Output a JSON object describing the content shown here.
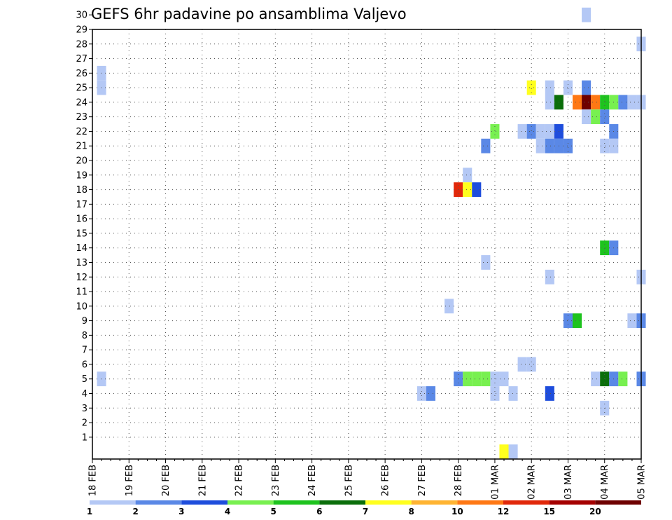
{
  "chart_data": {
    "type": "heatmap",
    "title": "GEFS 6hr padavine po ansamblima Valjevo",
    "xlabel": "",
    "ylabel": "",
    "x_tick_labels": [
      "18 FEB",
      "19 FEB",
      "20 FEB",
      "21 FEB",
      "22 FEB",
      "23 FEB",
      "24 FEB",
      "25 FEB",
      "26 FEB",
      "27 FEB",
      "28 FEB",
      "01 MAR",
      "02 MAR",
      "03 MAR",
      "04 MAR",
      "05 MAR"
    ],
    "y_tick_labels": [
      "1",
      "2",
      "3",
      "4",
      "5",
      "6",
      "7",
      "8",
      "9",
      "10",
      "11",
      "12",
      "13",
      "14",
      "15",
      "16",
      "17",
      "18",
      "19",
      "20",
      "21",
      "22",
      "23",
      "24",
      "25",
      "26",
      "27",
      "28",
      "29",
      "30"
    ],
    "y_range": [
      0,
      30
    ],
    "x_range_days": [
      0,
      15
    ],
    "time_step_hours": 6,
    "grid": "dotted",
    "levels": [
      "1",
      "2",
      "3",
      "4",
      "5",
      "6",
      "7",
      "8",
      "10",
      "12",
      "15",
      "20"
    ],
    "colors": [
      "#b4c8f5",
      "#5a88e6",
      "#1e4ddc",
      "#78f050",
      "#1ec31e",
      "#0a6e0a",
      "#ffff1e",
      "#ffb432",
      "#ff7814",
      "#e1280a",
      "#a50000",
      "#6e0000"
    ],
    "cells": [
      {
        "member": 26,
        "step": 1,
        "class": 1
      },
      {
        "member": 25,
        "step": 1,
        "class": 1
      },
      {
        "member": 5,
        "step": 1,
        "class": 1
      },
      {
        "member": 30,
        "step": 54,
        "class": 1
      },
      {
        "member": 28,
        "step": 60,
        "class": 1
      },
      {
        "member": 25,
        "step": 48,
        "class": 7
      },
      {
        "member": 25,
        "step": 50,
        "class": 1
      },
      {
        "member": 25,
        "step": 52,
        "class": 1
      },
      {
        "member": 25,
        "step": 54,
        "class": 2
      },
      {
        "member": 24,
        "step": 50,
        "class": 1
      },
      {
        "member": 24,
        "step": 51,
        "class": 6
      },
      {
        "member": 24,
        "step": 53,
        "class": 9
      },
      {
        "member": 24,
        "step": 54,
        "class": 12
      },
      {
        "member": 24,
        "step": 55,
        "class": 9
      },
      {
        "member": 24,
        "step": 56,
        "class": 5
      },
      {
        "member": 24,
        "step": 57,
        "class": 4
      },
      {
        "member": 24,
        "step": 58,
        "class": 2
      },
      {
        "member": 24,
        "step": 59,
        "class": 1
      },
      {
        "member": 24,
        "step": 60,
        "class": 1
      },
      {
        "member": 23,
        "step": 54,
        "class": 1
      },
      {
        "member": 23,
        "step": 55,
        "class": 4
      },
      {
        "member": 23,
        "step": 56,
        "class": 2
      },
      {
        "member": 22,
        "step": 44,
        "class": 4
      },
      {
        "member": 22,
        "step": 47,
        "class": 1
      },
      {
        "member": 22,
        "step": 48,
        "class": 2
      },
      {
        "member": 22,
        "step": 49,
        "class": 1
      },
      {
        "member": 22,
        "step": 50,
        "class": 1
      },
      {
        "member": 22,
        "step": 51,
        "class": 3
      },
      {
        "member": 22,
        "step": 57,
        "class": 2
      },
      {
        "member": 21,
        "step": 43,
        "class": 2
      },
      {
        "member": 21,
        "step": 49,
        "class": 1
      },
      {
        "member": 21,
        "step": 50,
        "class": 2
      },
      {
        "member": 21,
        "step": 51,
        "class": 2
      },
      {
        "member": 21,
        "step": 52,
        "class": 2
      },
      {
        "member": 21,
        "step": 56,
        "class": 1
      },
      {
        "member": 21,
        "step": 57,
        "class": 1
      },
      {
        "member": 19,
        "step": 41,
        "class": 1
      },
      {
        "member": 18,
        "step": 40,
        "class": 10
      },
      {
        "member": 18,
        "step": 41,
        "class": 7
      },
      {
        "member": 18,
        "step": 42,
        "class": 3
      },
      {
        "member": 14,
        "step": 56,
        "class": 5
      },
      {
        "member": 14,
        "step": 57,
        "class": 2
      },
      {
        "member": 13,
        "step": 43,
        "class": 1
      },
      {
        "member": 12,
        "step": 50,
        "class": 1
      },
      {
        "member": 12,
        "step": 60,
        "class": 1
      },
      {
        "member": 10,
        "step": 39,
        "class": 1
      },
      {
        "member": 9,
        "step": 52,
        "class": 2
      },
      {
        "member": 9,
        "step": 53,
        "class": 5
      },
      {
        "member": 9,
        "step": 59,
        "class": 1
      },
      {
        "member": 9,
        "step": 60,
        "class": 2
      },
      {
        "member": 6,
        "step": 47,
        "class": 1
      },
      {
        "member": 6,
        "step": 48,
        "class": 1
      },
      {
        "member": 5,
        "step": 40,
        "class": 2
      },
      {
        "member": 5,
        "step": 41,
        "class": 4
      },
      {
        "member": 5,
        "step": 42,
        "class": 4
      },
      {
        "member": 5,
        "step": 43,
        "class": 4
      },
      {
        "member": 5,
        "step": 44,
        "class": 1
      },
      {
        "member": 5,
        "step": 45,
        "class": 1
      },
      {
        "member": 5,
        "step": 55,
        "class": 1
      },
      {
        "member": 5,
        "step": 56,
        "class": 6
      },
      {
        "member": 5,
        "step": 57,
        "class": 2
      },
      {
        "member": 5,
        "step": 58,
        "class": 4
      },
      {
        "member": 5,
        "step": 60,
        "class": 2
      },
      {
        "member": 4,
        "step": 36,
        "class": 1
      },
      {
        "member": 4,
        "step": 37,
        "class": 2
      },
      {
        "member": 4,
        "step": 44,
        "class": 1
      },
      {
        "member": 4,
        "step": 46,
        "class": 1
      },
      {
        "member": 4,
        "step": 50,
        "class": 3
      },
      {
        "member": 3,
        "step": 56,
        "class": 1
      },
      {
        "member": 0,
        "step": 45,
        "class": 7
      },
      {
        "member": 0,
        "step": 46,
        "class": 1
      }
    ]
  }
}
